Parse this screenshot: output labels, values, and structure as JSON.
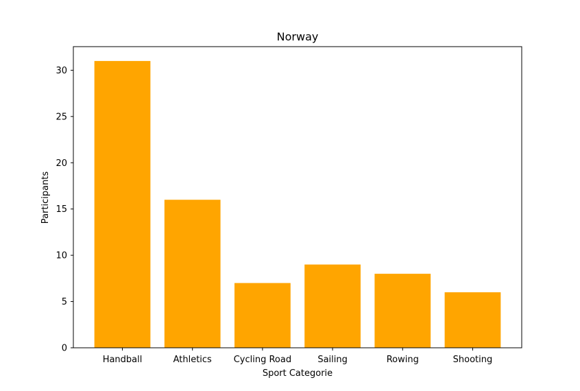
{
  "chart_data": {
    "type": "bar",
    "title": "Norway",
    "xlabel": "Sport Categorie",
    "ylabel": "Participants",
    "categories": [
      "Handball",
      "Athletics",
      "Cycling Road",
      "Sailing",
      "Rowing",
      "Shooting"
    ],
    "values": [
      31,
      16,
      7,
      9,
      8,
      6
    ],
    "yticks": [
      0,
      5,
      10,
      15,
      20,
      25,
      30
    ],
    "ylim": [
      0,
      32.55
    ],
    "bar_color": "#ffa500",
    "grid": false,
    "legend": "none"
  }
}
